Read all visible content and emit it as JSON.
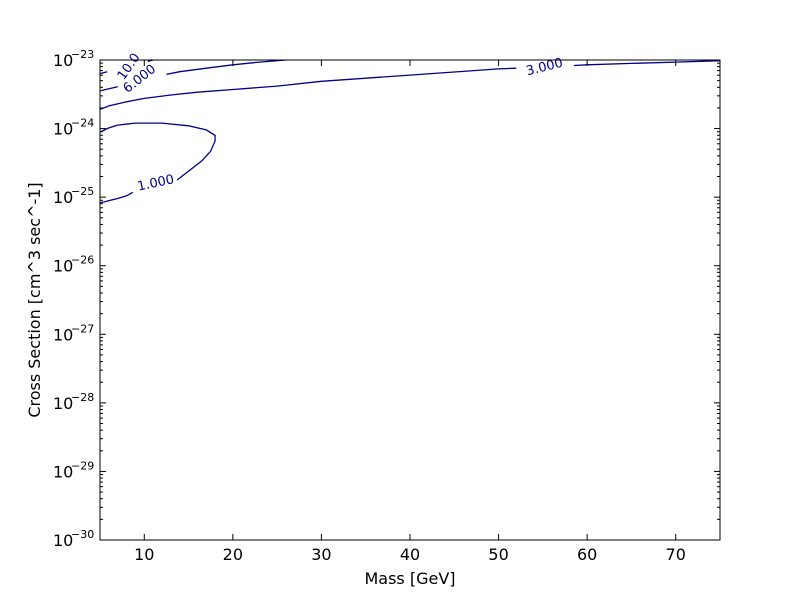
{
  "chart_data": {
    "type": "contour",
    "title": "",
    "xlabel": "Mass [GeV]",
    "ylabel": "Cross Section [cm^3 sec^-1]",
    "xlim": [
      5,
      75
    ],
    "ylim_log10": [
      -30,
      -23
    ],
    "y_scale": "log",
    "x_ticks": [
      10,
      20,
      30,
      40,
      50,
      60,
      70
    ],
    "x_tick_labels": [
      "10",
      "20",
      "30",
      "40",
      "50",
      "60",
      "70"
    ],
    "y_ticks_log10": [
      -30,
      -29,
      -28,
      -27,
      -26,
      -25,
      -24,
      -23
    ],
    "y_tick_base": "10",
    "y_tick_exponents": [
      "−30",
      "−29",
      "−28",
      "−27",
      "−26",
      "−25",
      "−24",
      "−23"
    ],
    "grid": false,
    "line_color": "#00008b",
    "contours": [
      {
        "level_label": "1.000",
        "points": [
          [
            5,
            -25.08
          ],
          [
            5.5,
            -25.07
          ],
          [
            6,
            -25.05
          ],
          [
            7,
            -25.02
          ],
          [
            8,
            -24.98
          ],
          [
            8.7,
            -24.93
          ]
        ],
        "points_after_label": [
          [
            13.7,
            -24.75
          ],
          [
            15,
            -24.62
          ],
          [
            16.5,
            -24.47
          ],
          [
            17.5,
            -24.33
          ],
          [
            18,
            -24.18
          ],
          [
            18,
            -24.1
          ],
          [
            17,
            -24.02
          ],
          [
            15,
            -23.96
          ],
          [
            12,
            -23.92
          ],
          [
            9,
            -23.92
          ],
          [
            7,
            -23.95
          ],
          [
            6,
            -23.99
          ],
          [
            5,
            -24.05
          ]
        ],
        "label_at": [
          11.3,
          -24.8
        ],
        "label_angle": -12
      },
      {
        "level_label": "3.000",
        "points": [
          [
            5,
            -23.72
          ],
          [
            6,
            -23.67
          ],
          [
            8,
            -23.61
          ],
          [
            10,
            -23.56
          ],
          [
            13,
            -23.51
          ],
          [
            16,
            -23.47
          ],
          [
            20,
            -23.43
          ],
          [
            25,
            -23.38
          ],
          [
            30,
            -23.31
          ],
          [
            40,
            -23.22
          ],
          [
            50,
            -23.13
          ],
          [
            52,
            -23.12
          ]
        ],
        "points_after_label": [
          [
            58.5,
            -23.08
          ],
          [
            60,
            -23.07
          ],
          [
            65,
            -23.05
          ],
          [
            70,
            -23.03
          ],
          [
            75,
            -23.01
          ]
        ],
        "label_at": [
          55.2,
          -23.11
        ],
        "label_angle": -14
      },
      {
        "level_label": "6.000",
        "points": [
          [
            5,
            -23.45
          ],
          [
            6,
            -23.42
          ],
          [
            7,
            -23.39
          ]
        ],
        "points_after_label": [
          [
            12.5,
            -23.21
          ],
          [
            14,
            -23.17
          ],
          [
            17,
            -23.12
          ],
          [
            20,
            -23.07
          ],
          [
            23,
            -23.03
          ],
          [
            26,
            -23.0
          ]
        ],
        "label_at": [
          9.5,
          -23.28
        ],
        "label_angle": -38
      },
      {
        "level_label": "10.0",
        "points": [
          [
            5,
            -23.2
          ],
          [
            5.8,
            -23.17
          ]
        ],
        "points_after_label": [
          [
            10.4,
            -23.02
          ],
          [
            11,
            -23.0
          ]
        ],
        "label_at": [
          8.3,
          -23.1
        ],
        "label_angle": -55
      }
    ]
  }
}
